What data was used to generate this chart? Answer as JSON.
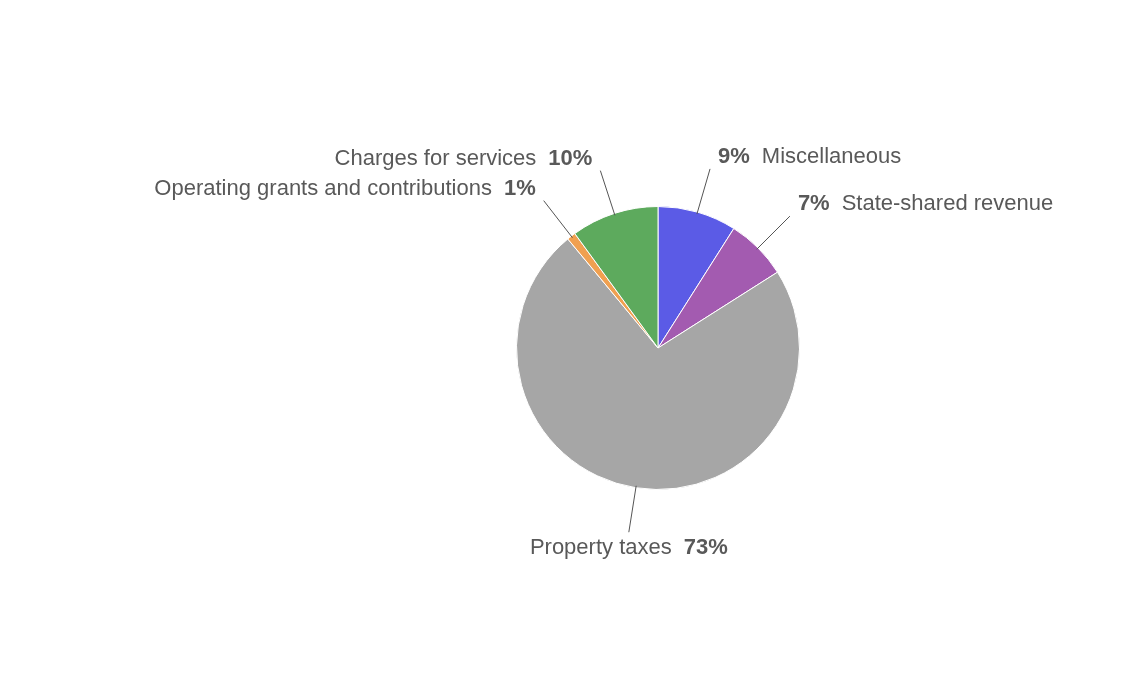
{
  "chart_data": {
    "type": "pie",
    "categories": [
      "Miscellaneous",
      "State-shared revenue",
      "Property taxes",
      "Operating grants and contributions",
      "Charges for services"
    ],
    "values": [
      9,
      7,
      73,
      1,
      10
    ],
    "value_labels": [
      "9%",
      "7%",
      "73%",
      "1%",
      "10%"
    ],
    "colors": [
      "#5b5be6",
      "#a35bb0",
      "#a6a6a6",
      "#f0a050",
      "#5daa5d"
    ]
  }
}
